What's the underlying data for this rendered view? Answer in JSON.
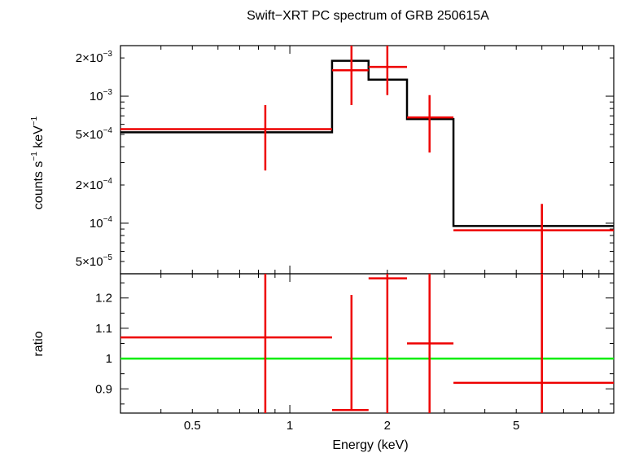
{
  "chart_data": [
    {
      "type": "scatter",
      "title": "Swift−XRT PC spectrum of GRB 250615A",
      "ylabel_main": "counts s",
      "ylabel_sup1": "−1",
      "ylabel_mid": " keV",
      "ylabel_sup2": "−1",
      "xscale": "log",
      "yscale": "log",
      "xlim": [
        0.3,
        10
      ],
      "ylim": [
        4e-05,
        0.0025
      ],
      "yticks": [
        {
          "value": 0.002,
          "mant": "2×10",
          "exp": "−3"
        },
        {
          "value": 0.001,
          "mant": "10",
          "exp": "−3"
        },
        {
          "value": 0.0005,
          "mant": "5×10",
          "exp": "−4"
        },
        {
          "value": 0.0002,
          "mant": "2×10",
          "exp": "−4"
        },
        {
          "value": 0.0001,
          "mant": "10",
          "exp": "−4"
        },
        {
          "value": 5e-05,
          "mant": "5×10",
          "exp": "−5"
        }
      ],
      "data_points": [
        {
          "x": 0.84,
          "xlo": 0.3,
          "xhi": 1.35,
          "y": 0.00055,
          "ylo": 0.00026,
          "yhi": 0.00085
        },
        {
          "x": 1.55,
          "xlo": 1.35,
          "xhi": 1.75,
          "y": 0.0016,
          "ylo": 0.00085,
          "yhi": 0.0025
        },
        {
          "x": 2.0,
          "xlo": 1.75,
          "xhi": 2.3,
          "y": 0.0017,
          "ylo": 0.00102,
          "yhi": 0.0025
        },
        {
          "x": 2.7,
          "xlo": 2.3,
          "xhi": 3.2,
          "y": 0.00068,
          "ylo": 0.00036,
          "yhi": 0.00102
        },
        {
          "x": 6.0,
          "xlo": 3.2,
          "xhi": 10.0,
          "y": 8.8e-05,
          "ylo": 4e-05,
          "yhi": 0.000142
        }
      ],
      "model_steps": [
        {
          "xlo": 0.3,
          "xhi": 1.35,
          "y": 0.00052
        },
        {
          "xlo": 1.35,
          "xhi": 1.75,
          "y": 0.0019
        },
        {
          "xlo": 1.75,
          "xhi": 2.3,
          "y": 0.00135
        },
        {
          "xlo": 2.3,
          "xhi": 3.2,
          "y": 0.00066
        },
        {
          "xlo": 3.2,
          "xhi": 10.0,
          "y": 9.5e-05
        }
      ],
      "data_color": "#ee0000",
      "model_color": "#000000"
    },
    {
      "type": "scatter",
      "ylabel": "ratio",
      "xlabel": "Energy (keV)",
      "xscale": "log",
      "xlim": [
        0.3,
        10
      ],
      "ylim": [
        0.82,
        1.28
      ],
      "yticks": [
        {
          "value": 0.9,
          "label": "0.9"
        },
        {
          "value": 1.0,
          "label": "1"
        },
        {
          "value": 1.1,
          "label": "1.1"
        },
        {
          "value": 1.2,
          "label": "1.2"
        }
      ],
      "xticks": [
        {
          "value": 0.5,
          "label": "0.5"
        },
        {
          "value": 1,
          "label": "1"
        },
        {
          "value": 2,
          "label": "2"
        },
        {
          "value": 5,
          "label": "5"
        }
      ],
      "data_points": [
        {
          "x": 0.84,
          "xlo": 0.3,
          "xhi": 1.35,
          "y": 1.07,
          "ylo": 0.82,
          "yhi": 1.28
        },
        {
          "x": 1.55,
          "xlo": 1.35,
          "xhi": 1.75,
          "y": 0.83,
          "ylo": 0.83,
          "yhi": 1.21
        },
        {
          "x": 2.0,
          "xlo": 1.75,
          "xhi": 2.3,
          "y": 1.265,
          "ylo": 0.82,
          "yhi": 1.28
        },
        {
          "x": 2.7,
          "xlo": 2.3,
          "xhi": 3.2,
          "y": 1.05,
          "ylo": 0.82,
          "yhi": 1.28
        },
        {
          "x": 6.0,
          "xlo": 3.2,
          "xhi": 10.0,
          "y": 0.92,
          "ylo": 0.82,
          "yhi": 1.28
        }
      ],
      "reference_line": 1.0,
      "reference_color": "#00ee00",
      "data_color": "#ee0000"
    }
  ]
}
